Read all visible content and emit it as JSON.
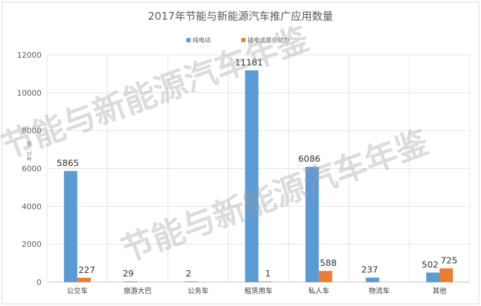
{
  "chart_data": {
    "type": "bar",
    "title": "2017年节能与新能源汽车推广应用数量",
    "ylabel": "单位：辆",
    "xlabel": "",
    "categories": [
      "公交车",
      "旅游大巴",
      "公务车",
      "租赁用车",
      "私人车",
      "物流车",
      "其他"
    ],
    "series": [
      {
        "name": "纯电动",
        "color": "#5b9bd5",
        "values": [
          5865,
          29,
          2,
          11181,
          6086,
          237,
          502
        ]
      },
      {
        "name": "插电式混合动力",
        "color": "#ed7d31",
        "values": [
          227,
          null,
          null,
          1,
          588,
          null,
          725
        ]
      }
    ],
    "ylim": [
      0,
      12000
    ],
    "yticks": [
      0,
      2000,
      4000,
      6000,
      8000,
      10000,
      12000
    ],
    "grid": true,
    "legend_position": "top-center"
  },
  "watermark": {
    "upper": "节能与新能源汽车年鉴",
    "lower": "节能与新能源汽车年鉴"
  }
}
